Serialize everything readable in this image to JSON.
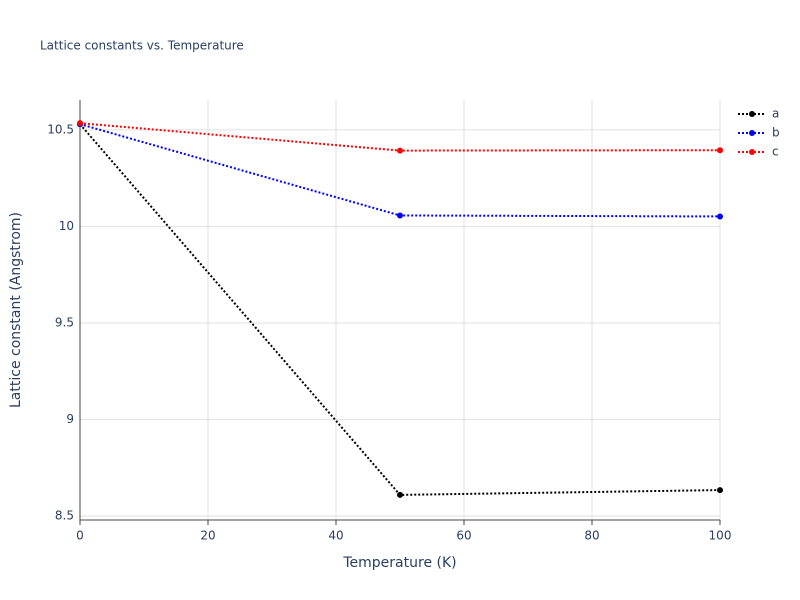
{
  "chart_data": {
    "type": "line",
    "title": "Lattice constants vs. Temperature",
    "x_label": "Temperature (K)",
    "y_label": "Lattice constant (Angstrom)",
    "x": [
      0,
      50,
      100
    ],
    "series": [
      {
        "name": "a",
        "color": "#000000",
        "values": [
          10.53,
          8.61,
          8.635
        ]
      },
      {
        "name": "b",
        "color": "#0000ff",
        "values": [
          10.53,
          10.057,
          10.052
        ]
      },
      {
        "name": "c",
        "color": "#ff0000",
        "values": [
          10.535,
          10.393,
          10.395
        ]
      }
    ],
    "xlim": [
      0,
      100
    ],
    "xticks": [
      0,
      20,
      40,
      60,
      80,
      100
    ],
    "ylim": [
      8.48,
      10.655
    ],
    "yticks": [
      8.5,
      9,
      9.5,
      10,
      10.5
    ],
    "grid": true,
    "legend": "top-right"
  }
}
